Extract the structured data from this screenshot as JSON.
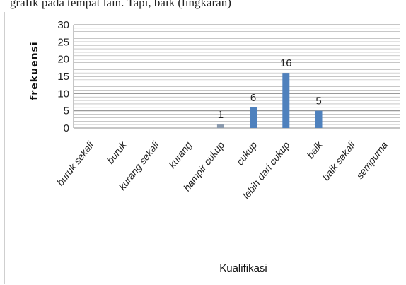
{
  "caption": "grafik pada tempat lain. Tapi, baik (lingkaran)",
  "chart_data": {
    "type": "bar",
    "categories": [
      "buruk sekali",
      "buruk",
      "kurang sekali",
      "kurang",
      "hampir cukup",
      "cukup",
      "lebih dari cukup",
      "baik",
      "baik sekali",
      "sempurna"
    ],
    "values": [
      0,
      0,
      0,
      0,
      1,
      6,
      16,
      5,
      0,
      0
    ],
    "data_labels": [
      "",
      "",
      "",
      "",
      "1",
      "6",
      "16",
      "5",
      "",
      ""
    ],
    "ylabel": "frekuensi",
    "xlabel": "Kualifikasi",
    "ylim": [
      0,
      30
    ],
    "yticks": [
      0,
      5,
      10,
      15,
      20,
      25,
      30
    ],
    "grid": true,
    "gridline_step": 1,
    "legend": "none",
    "colors": {
      "bar": "#4f81bd",
      "bar_small": "#8a9aae",
      "grid": "#a6a6a6",
      "text": "#222222"
    }
  }
}
